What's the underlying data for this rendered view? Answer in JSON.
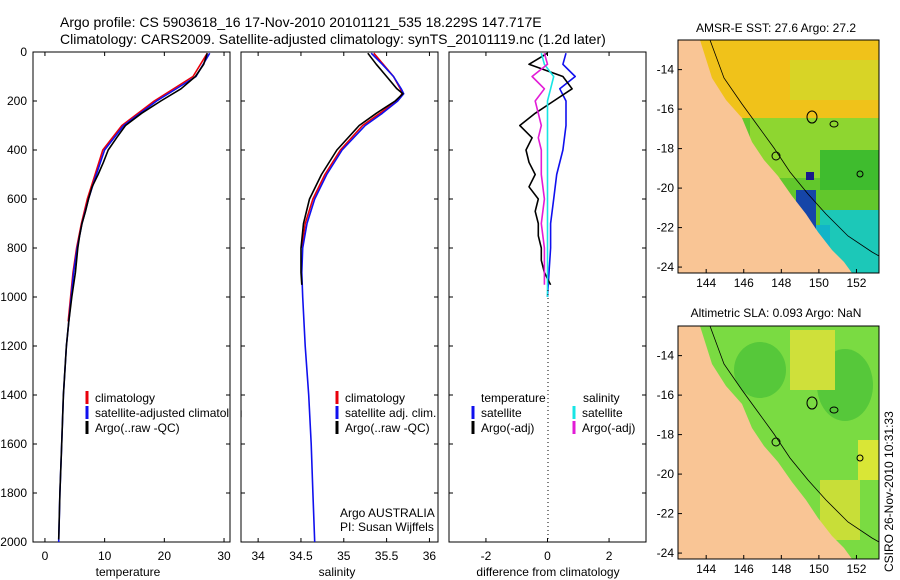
{
  "header": {
    "line1": "Argo profile: CS 5903618_16 17-Nov-2010 20101121_535 18.229S 147.717E",
    "line2": "Climatology: CARS2009. Satellite-adjusted climatology: synTS_20101119.nc (1.2d later)"
  },
  "depth_axis": {
    "ylim": [
      0,
      2000
    ],
    "ticks": [
      "0",
      "200",
      "400",
      "600",
      "800",
      "1000",
      "1200",
      "1400",
      "1600",
      "1800",
      "2000"
    ]
  },
  "colors": {
    "climatology": "#e8000b",
    "satellite": "#1010ee",
    "argo": "#000000",
    "sal_satellite": "#17e5e5",
    "sal_argo": "#e21cd6",
    "land": "#f9c595"
  },
  "chart_data": [
    {
      "type": "line",
      "name": "temperature-panel",
      "xlabel": "temperature",
      "xlim": [
        -2,
        31
      ],
      "xticks": [
        "0",
        "10",
        "20",
        "30"
      ],
      "xtick_values": [
        0,
        10,
        20,
        30
      ],
      "legend": [
        "climatology",
        "satellite-adjusted climatolog",
        "Argo(..raw -QC)"
      ],
      "series": [
        {
          "name": "climatology",
          "color": "#e8000b",
          "depth": [
            5,
            100,
            200,
            300,
            400,
            500,
            600,
            700,
            800,
            900,
            1000,
            1100
          ],
          "values": [
            27.2,
            24.8,
            18.3,
            12.9,
            9.7,
            8.4,
            7.1,
            6.1,
            5.3,
            4.7,
            4.3,
            3.9
          ]
        },
        {
          "name": "satellite-adjusted climatology",
          "color": "#1010ee",
          "depth": [
            5,
            100,
            200,
            300,
            400,
            500,
            600,
            700,
            800,
            900,
            1000,
            1200,
            1400,
            1600,
            1800,
            2000
          ],
          "values": [
            27.6,
            25.3,
            18.7,
            13.2,
            10.0,
            8.6,
            7.3,
            6.2,
            5.4,
            4.8,
            4.4,
            3.6,
            3.1,
            2.8,
            2.5,
            2.3
          ]
        },
        {
          "name": "Argo(..raw -QC)",
          "color": "#000000",
          "depth": [
            5,
            50,
            100,
            150,
            200,
            250,
            300,
            350,
            400,
            450,
            500,
            550,
            600,
            650,
            700,
            750,
            800,
            850,
            900,
            950,
            1000,
            1100,
            1200,
            1400,
            1600,
            1800,
            1990
          ],
          "values": [
            27.2,
            26.6,
            25.2,
            22.8,
            19.4,
            16.2,
            13.5,
            12.0,
            10.6,
            9.8,
            8.9,
            7.9,
            7.3,
            6.8,
            6.2,
            5.8,
            5.5,
            5.3,
            5.1,
            4.8,
            4.5,
            4.0,
            3.6,
            3.1,
            2.8,
            2.5,
            2.3
          ]
        }
      ]
    },
    {
      "type": "line",
      "name": "salinity-panel",
      "xlabel": "salinity",
      "xlim": [
        33.8,
        36.1
      ],
      "xticks": [
        "34",
        "34.5",
        "35",
        "35.5",
        "36"
      ],
      "xtick_values": [
        34,
        34.5,
        35,
        35.5,
        36
      ],
      "legend": [
        "climatology",
        "satellite adj. clim.",
        "Argo(..raw -QC)"
      ],
      "annotation": [
        "Argo AUSTRALIA",
        "PI: Susan Wijffels"
      ],
      "series": [
        {
          "name": "climatology",
          "color": "#e8000b",
          "depth": [
            5,
            50,
            100,
            150,
            170,
            200,
            250,
            300,
            400,
            500,
            600,
            700,
            800
          ],
          "values": [
            35.35,
            35.46,
            35.58,
            35.66,
            35.68,
            35.62,
            35.42,
            35.22,
            34.96,
            34.78,
            34.64,
            34.55,
            34.51
          ]
        },
        {
          "name": "satellite adj. clim.",
          "color": "#1010ee",
          "depth": [
            5,
            50,
            100,
            150,
            170,
            200,
            250,
            300,
            400,
            500,
            600,
            700,
            800,
            900,
            1000,
            1200,
            1400,
            1600,
            1800,
            2000
          ],
          "values": [
            35.32,
            35.45,
            35.58,
            35.67,
            35.7,
            35.63,
            35.45,
            35.25,
            34.98,
            34.8,
            34.66,
            34.57,
            34.52,
            34.51,
            34.52,
            34.55,
            34.59,
            34.62,
            34.64,
            34.66
          ]
        },
        {
          "name": "Argo(..raw -QC)",
          "color": "#000000",
          "depth": [
            5,
            50,
            100,
            150,
            170,
            200,
            250,
            300,
            400,
            500,
            600,
            700,
            800,
            900,
            950
          ],
          "values": [
            35.28,
            35.38,
            35.5,
            35.62,
            35.69,
            35.6,
            35.38,
            35.18,
            34.92,
            34.74,
            34.6,
            34.53,
            34.5,
            34.5,
            34.51
          ]
        }
      ]
    },
    {
      "type": "line",
      "name": "difference-panel",
      "xlabel": "difference from climatology",
      "xlim": [
        -3.2,
        3.2
      ],
      "xticks": [
        "-2",
        "0",
        "2"
      ],
      "xtick_values": [
        -2,
        0,
        2
      ],
      "legend_headers": [
        "temperature",
        "salinity"
      ],
      "legend": [
        "satellite",
        "Argo(-adj)",
        "satellite",
        "Argo(-adj)"
      ],
      "series": [
        {
          "name": "temperature satellite",
          "color": "#1010ee",
          "depth": [
            5,
            50,
            100,
            150,
            200,
            300,
            400,
            500,
            600,
            700,
            800,
            900,
            1000
          ],
          "values": [
            0.6,
            0.5,
            0.9,
            0.4,
            0.6,
            0.6,
            0.5,
            0.3,
            0.2,
            0.1,
            0.1,
            0.05,
            0.0
          ]
        },
        {
          "name": "temperature Argo(-adj)",
          "color": "#000000",
          "depth": [
            5,
            50,
            100,
            150,
            200,
            250,
            300,
            350,
            400,
            450,
            500,
            550,
            600,
            650,
            700,
            750,
            800,
            850,
            900,
            950
          ],
          "values": [
            0.0,
            -0.6,
            0.5,
            0.8,
            0.2,
            -0.4,
            -0.9,
            -0.5,
            -0.7,
            -0.6,
            -0.4,
            -0.6,
            -0.3,
            -0.4,
            -0.3,
            -0.3,
            -0.2,
            -0.2,
            -0.1,
            0.1
          ]
        },
        {
          "name": "salinity satellite",
          "color": "#17e5e5",
          "depth": [
            5,
            50,
            100,
            150,
            200,
            300,
            400,
            500,
            600,
            700,
            800,
            900,
            1000
          ],
          "values": [
            -0.2,
            -0.1,
            0.2,
            0.1,
            0.0,
            0.0,
            0.0,
            0.0,
            0.0,
            0.0,
            0.0,
            0.0,
            0.0
          ]
        },
        {
          "name": "salinity Argo(-adj)",
          "color": "#e21cd6",
          "depth": [
            5,
            50,
            100,
            150,
            200,
            250,
            300,
            350,
            400,
            500,
            600,
            700,
            800,
            900,
            950
          ],
          "values": [
            -0.1,
            0.0,
            -0.5,
            -0.1,
            -0.4,
            -0.3,
            -0.2,
            -0.3,
            -0.2,
            -0.2,
            -0.1,
            -0.2,
            -0.1,
            -0.1,
            -0.1
          ]
        }
      ]
    },
    {
      "type": "heatmap",
      "name": "sst-map",
      "title": "AMSR-E SST: 27.6 Argo: 27.2",
      "xlim": [
        142.5,
        153.2
      ],
      "ylim": [
        -24.3,
        -12.5
      ],
      "xticks": [
        "144",
        "146",
        "148",
        "150",
        "152"
      ],
      "xtick_values": [
        144,
        146,
        148,
        150,
        152
      ],
      "yticks": [
        "-14",
        "-16",
        "-18",
        "-20",
        "-22",
        "-24"
      ],
      "ytick_values": [
        -14,
        -16,
        -18,
        -20,
        -22,
        -24
      ],
      "float_position": [
        147.717,
        -18.229
      ]
    },
    {
      "type": "heatmap",
      "name": "sla-map",
      "title": "Altimetric SLA: 0.093 Argo: NaN",
      "xlim": [
        142.5,
        153.2
      ],
      "ylim": [
        -24.3,
        -12.5
      ],
      "xticks": [
        "144",
        "146",
        "148",
        "150",
        "152"
      ],
      "xtick_values": [
        144,
        146,
        148,
        150,
        152
      ],
      "yticks": [
        "-14",
        "-16",
        "-18",
        "-20",
        "-22",
        "-24"
      ],
      "ytick_values": [
        -14,
        -16,
        -18,
        -20,
        -22,
        -24
      ],
      "float_position": [
        147.717,
        -18.229
      ]
    }
  ],
  "side_label": "CSIRO 26-Nov-2010 10:31:33"
}
